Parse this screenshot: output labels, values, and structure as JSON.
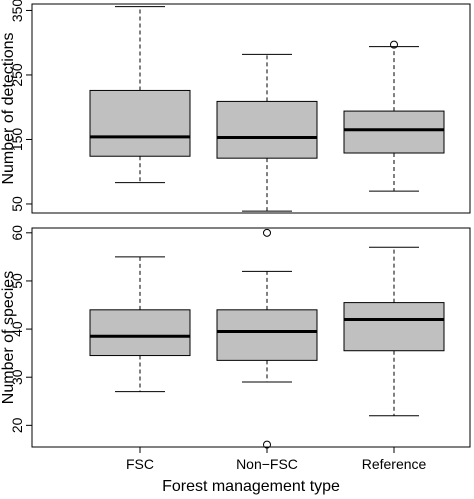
{
  "chart_data": [
    {
      "type": "boxplot",
      "title": "",
      "xlabel": "",
      "ylabel": "Number of detections",
      "ylim": [
        36,
        360
      ],
      "yticks": [
        50,
        150,
        250,
        350
      ],
      "categories": [
        "FSC",
        "Non-FSC",
        "Reference"
      ],
      "show_category_labels": false,
      "grid": false,
      "boxes": [
        {
          "category": "FSC",
          "whisker_low": 83,
          "q1": 124,
          "median": 154,
          "q3": 226,
          "whisker_high": 356,
          "outliers": []
        },
        {
          "category": "Non-FSC",
          "whisker_low": 39,
          "q1": 121,
          "median": 153,
          "q3": 209,
          "whisker_high": 282,
          "outliers": []
        },
        {
          "category": "Reference",
          "whisker_low": 70,
          "q1": 129,
          "median": 165,
          "q3": 194,
          "whisker_high": 294,
          "outliers": [
            297
          ]
        }
      ]
    },
    {
      "type": "boxplot",
      "title": "",
      "xlabel": "Forest management type",
      "ylabel": "Number of species",
      "ylim": [
        15.5,
        61
      ],
      "yticks": [
        20,
        30,
        40,
        50,
        60
      ],
      "categories": [
        "FSC",
        "Non−FSC",
        "Reference"
      ],
      "show_category_labels": true,
      "grid": false,
      "boxes": [
        {
          "category": "FSC",
          "whisker_low": 27,
          "q1": 34.5,
          "median": 38.5,
          "q3": 44,
          "whisker_high": 55,
          "outliers": []
        },
        {
          "category": "Non−FSC",
          "whisker_low": 29,
          "q1": 33.5,
          "median": 39.5,
          "q3": 44,
          "whisker_high": 52,
          "outliers": [
            60,
            16
          ]
        },
        {
          "category": "Reference",
          "whisker_low": 22,
          "q1": 35.5,
          "median": 42,
          "q3": 45.5,
          "whisker_high": 57,
          "outliers": []
        }
      ]
    }
  ],
  "colors": {
    "box_fill": "#c0c0c0",
    "stroke": "#000000",
    "background": "#ffffff"
  }
}
